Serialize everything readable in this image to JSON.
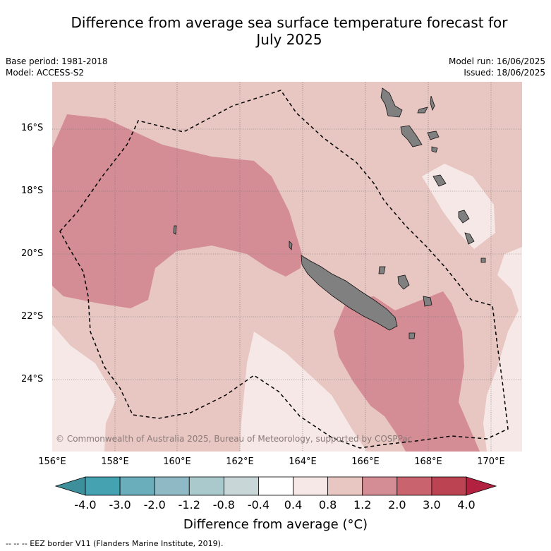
{
  "title_line1": "Difference from average sea surface temperature forecast for",
  "title_line2": "July 2025",
  "base_period": "Base period: 1981-2018",
  "model": "Model: ACCESS-S2",
  "model_run": "Model run: 16/06/2025",
  "issued": "Issued: 18/06/2025",
  "latitude_labels": [
    "16°S",
    "18°S",
    "20°S",
    "22°S",
    "24°S"
  ],
  "longitude_labels": [
    "156°E",
    "158°E",
    "160°E",
    "162°E",
    "164°E",
    "166°E",
    "168°E",
    "170°E"
  ],
  "colorbar": {
    "ticks": [
      "-4.0",
      "-3.0",
      "-2.0",
      "-1.2",
      "-0.8",
      "-0.4",
      "0.4",
      "0.8",
      "1.2",
      "2.0",
      "3.0",
      "4.0"
    ],
    "colors": [
      "#3d8f9c",
      "#44a2b1",
      "#6aadbb",
      "#8fb9c4",
      "#a9c9cd",
      "#c9d6d8",
      "#ffffff",
      "#f5e8e6",
      "#e8c6c1",
      "#d48c95",
      "#c9646f",
      "#bb4352",
      "#b2213f"
    ],
    "label": "Difference from average (°C)"
  },
  "copyright": "© Commonwealth of Australia 2025, Bureau of Meteorology, supported by COSPPac",
  "footnote": "-- -- -- EEZ border V11 (Flanders Marine Institute, 2019).",
  "colors": {
    "band_0_4_0_8": "#f5e8e6",
    "band_0_8_1_2": "#e8c6c1",
    "band_1_2_2_0": "#d48c95",
    "land": "#808080"
  }
}
